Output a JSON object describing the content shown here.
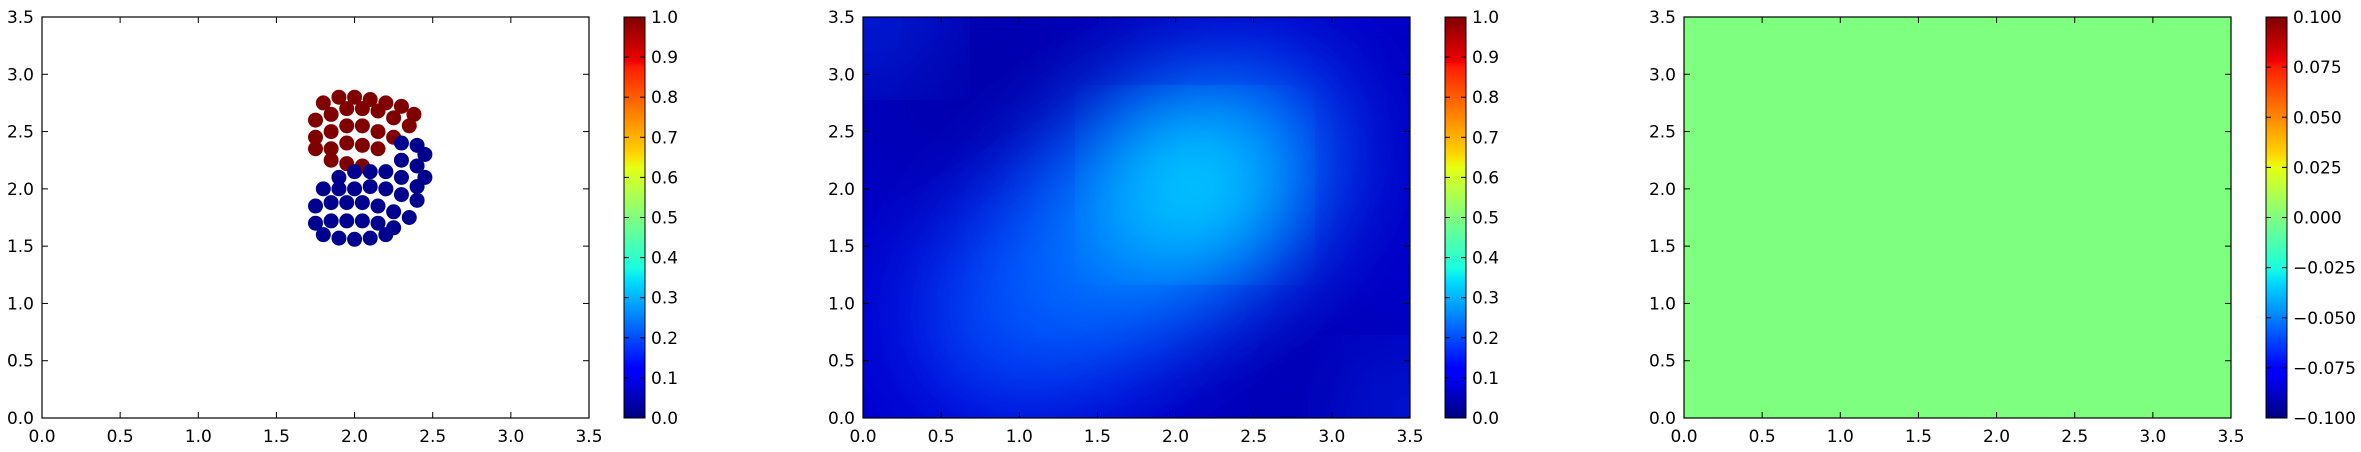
{
  "figure": {
    "background": "#ffffff"
  },
  "chart_data": [
    {
      "type": "scatter",
      "title": "",
      "xlabel": "",
      "ylabel": "",
      "xlim": [
        0.0,
        3.5
      ],
      "ylim": [
        0.0,
        3.5
      ],
      "xticks": [
        "0.0",
        "0.5",
        "1.0",
        "1.5",
        "2.0",
        "2.5",
        "3.0",
        "3.5"
      ],
      "yticks": [
        "0.0",
        "0.5",
        "1.0",
        "1.5",
        "2.0",
        "2.5",
        "3.0",
        "3.5"
      ],
      "grid": false,
      "colormap": "jet",
      "colorbar": {
        "ticks": [
          "0.0",
          "0.1",
          "0.2",
          "0.3",
          "0.4",
          "0.5",
          "0.6",
          "0.7",
          "0.8",
          "0.9",
          "1.0"
        ],
        "range": [
          0.0,
          1.0
        ]
      },
      "series": [
        {
          "value": 1.0,
          "color": "#800000",
          "points": [
            [
              1.8,
              2.75
            ],
            [
              1.9,
              2.8
            ],
            [
              2.0,
              2.8
            ],
            [
              2.1,
              2.78
            ],
            [
              2.2,
              2.75
            ],
            [
              2.3,
              2.72
            ],
            [
              2.38,
              2.65
            ],
            [
              1.75,
              2.6
            ],
            [
              1.85,
              2.65
            ],
            [
              1.95,
              2.7
            ],
            [
              2.05,
              2.7
            ],
            [
              2.15,
              2.68
            ],
            [
              2.25,
              2.62
            ],
            [
              2.35,
              2.55
            ],
            [
              1.75,
              2.45
            ],
            [
              1.85,
              2.5
            ],
            [
              1.95,
              2.55
            ],
            [
              2.05,
              2.55
            ],
            [
              2.15,
              2.5
            ],
            [
              2.25,
              2.45
            ],
            [
              1.75,
              2.35
            ],
            [
              1.85,
              2.35
            ],
            [
              1.95,
              2.4
            ],
            [
              2.05,
              2.38
            ],
            [
              2.15,
              2.35
            ],
            [
              1.85,
              2.25
            ],
            [
              1.95,
              2.22
            ],
            [
              2.05,
              2.2
            ]
          ]
        },
        {
          "value": 0.0,
          "color": "#00008f",
          "points": [
            [
              2.3,
              2.4
            ],
            [
              2.4,
              2.38
            ],
            [
              2.45,
              2.3
            ],
            [
              2.3,
              2.25
            ],
            [
              2.4,
              2.2
            ],
            [
              2.45,
              2.1
            ],
            [
              2.2,
              2.15
            ],
            [
              2.3,
              2.1
            ],
            [
              2.4,
              2.02
            ],
            [
              2.1,
              2.15
            ],
            [
              2.0,
              2.15
            ],
            [
              1.9,
              2.1
            ],
            [
              1.8,
              2.0
            ],
            [
              1.9,
              2.0
            ],
            [
              2.0,
              2.0
            ],
            [
              2.1,
              2.02
            ],
            [
              2.2,
              2.0
            ],
            [
              2.3,
              1.95
            ],
            [
              2.4,
              1.9
            ],
            [
              1.75,
              1.85
            ],
            [
              1.85,
              1.88
            ],
            [
              1.95,
              1.88
            ],
            [
              2.05,
              1.88
            ],
            [
              2.15,
              1.85
            ],
            [
              2.25,
              1.8
            ],
            [
              2.35,
              1.75
            ],
            [
              1.75,
              1.7
            ],
            [
              1.85,
              1.72
            ],
            [
              1.95,
              1.72
            ],
            [
              2.05,
              1.72
            ],
            [
              2.15,
              1.7
            ],
            [
              2.25,
              1.66
            ],
            [
              1.8,
              1.6
            ],
            [
              1.9,
              1.57
            ],
            [
              2.0,
              1.56
            ],
            [
              2.1,
              1.57
            ],
            [
              2.2,
              1.6
            ]
          ]
        }
      ]
    },
    {
      "type": "heatmap",
      "title": "",
      "xlabel": "",
      "ylabel": "",
      "xlim": [
        0.0,
        3.5
      ],
      "ylim": [
        0.0,
        3.5
      ],
      "xticks": [
        "0.0",
        "0.5",
        "1.0",
        "1.5",
        "2.0",
        "2.5",
        "3.0",
        "3.5"
      ],
      "yticks": [
        "0.0",
        "0.5",
        "1.0",
        "1.5",
        "2.0",
        "2.5",
        "3.0",
        "3.5"
      ],
      "grid": false,
      "colormap": "jet",
      "colorbar": {
        "ticks": [
          "0.0",
          "0.1",
          "0.2",
          "0.3",
          "0.4",
          "0.5",
          "0.6",
          "0.7",
          "0.8",
          "0.9",
          "1.0"
        ],
        "range": [
          0.0,
          1.0
        ]
      },
      "field": {
        "description_values": "smooth field, background about 0.08, peak about 0.40 near (2.1, 2.1), elongated toward lower-left",
        "peak": [
          2.1,
          2.1
        ],
        "peak_value": 0.4,
        "base_value": 0.08,
        "secondary_peak": [
          1.2,
          1.5
        ],
        "secondary_value": 0.28,
        "corner_bumps": [
          {
            "at": [
              0.0,
              3.5
            ],
            "value": 0.22
          },
          {
            "at": [
              3.5,
              0.0
            ],
            "value": 0.2
          },
          {
            "at": [
              0.0,
              0.0
            ],
            "value": 0.14
          },
          {
            "at": [
              3.5,
              3.5
            ],
            "value": 0.12
          }
        ]
      }
    },
    {
      "type": "heatmap",
      "title": "",
      "xlabel": "",
      "ylabel": "",
      "xlim": [
        0.0,
        3.5
      ],
      "ylim": [
        0.0,
        3.5
      ],
      "xticks": [
        "0.0",
        "0.5",
        "1.0",
        "1.5",
        "2.0",
        "2.5",
        "3.0",
        "3.5"
      ],
      "yticks": [
        "0.0",
        "0.5",
        "1.0",
        "1.5",
        "2.0",
        "2.5",
        "3.0",
        "3.5"
      ],
      "grid": false,
      "colormap": "jet",
      "colorbar": {
        "ticks": [
          "0.100",
          "0.075",
          "0.050",
          "0.025",
          "0.000",
          "−0.025",
          "−0.050",
          "−0.075",
          "−0.100"
        ],
        "range": [
          -0.1,
          0.1
        ]
      },
      "field": {
        "constant_value": 0.0,
        "color": "#7fff7f"
      }
    }
  ]
}
